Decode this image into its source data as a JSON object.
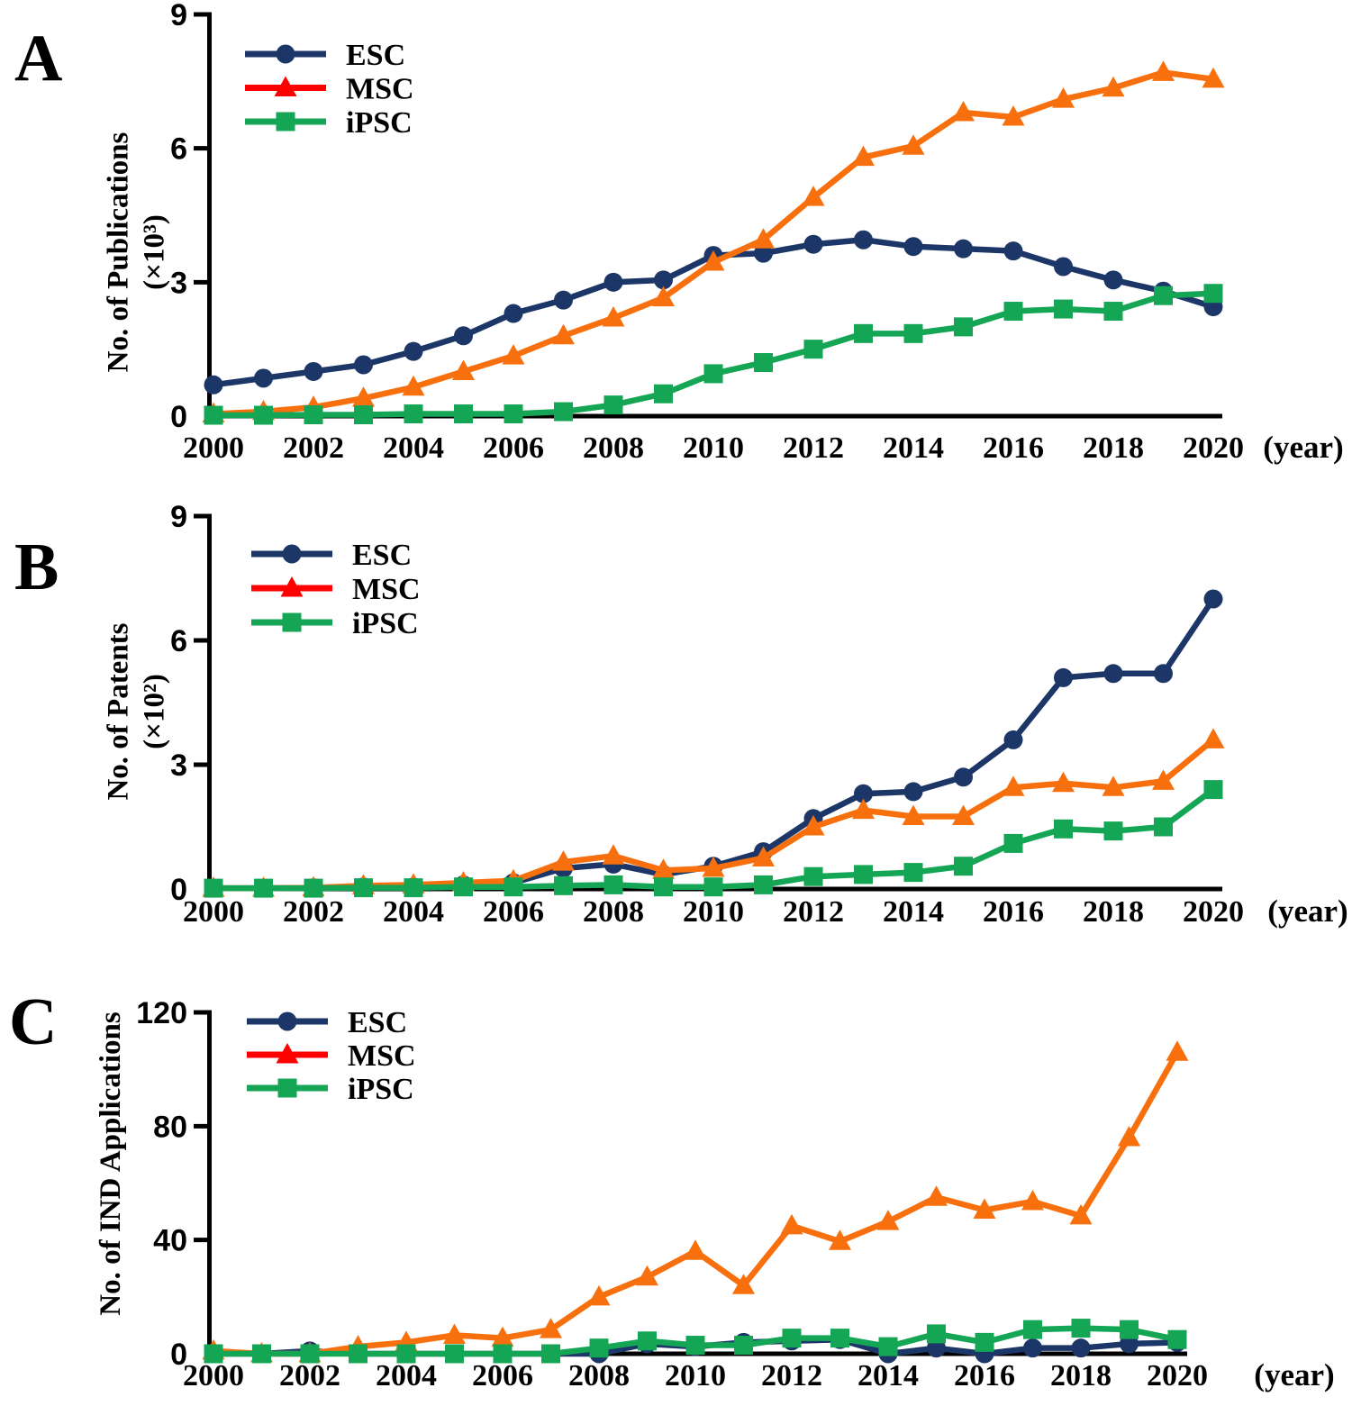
{
  "chart_data": {
    "xlabel": "(year)",
    "years": [
      2000,
      2001,
      2002,
      2003,
      2004,
      2005,
      2006,
      2007,
      2008,
      2009,
      2010,
      2011,
      2012,
      2013,
      2014,
      2015,
      2016,
      2017,
      2018,
      2019,
      2020
    ],
    "x_tick_labels": [
      "2000",
      "2002",
      "2004",
      "2006",
      "2008",
      "2010",
      "2012",
      "2014",
      "2016",
      "2018",
      "2020"
    ],
    "charts": [
      {
        "panel": "A",
        "type": "line",
        "ylabel": "No. of Publications",
        "ylabel_unit": "(×10³)",
        "ylim": [
          0,
          9
        ],
        "yticks": [
          0,
          3,
          6,
          9
        ],
        "legend_position": "top-left-inside",
        "grid": false,
        "series": [
          {
            "name": "ESC",
            "marker": "circle",
            "color": "#1C3667",
            "legend_color": "#1C3667",
            "values": [
              0.7,
              0.85,
              1.0,
              1.15,
              1.45,
              1.8,
              2.3,
              2.6,
              3.0,
              3.05,
              3.6,
              3.65,
              3.85,
              3.95,
              3.8,
              3.75,
              3.7,
              3.35,
              3.05,
              2.8,
              2.45
            ]
          },
          {
            "name": "MSC",
            "marker": "triangle",
            "color": "#F8700D",
            "legend_color": "#FF0000",
            "values": [
              0.05,
              0.1,
              0.2,
              0.4,
              0.65,
              1.0,
              1.35,
              1.8,
              2.2,
              2.65,
              3.45,
              3.95,
              4.9,
              5.8,
              6.05,
              6.8,
              6.7,
              7.1,
              7.35,
              7.7,
              7.55
            ]
          },
          {
            "name": "iPSC",
            "marker": "square",
            "color": "#14A655",
            "legend_color": "#14A655",
            "values": [
              0.02,
              0.02,
              0.03,
              0.03,
              0.05,
              0.05,
              0.05,
              0.1,
              0.25,
              0.5,
              0.95,
              1.2,
              1.5,
              1.85,
              1.85,
              2.0,
              2.35,
              2.4,
              2.35,
              2.7,
              2.75
            ]
          }
        ]
      },
      {
        "panel": "B",
        "type": "line",
        "ylabel": "No. of Patents",
        "ylabel_unit": "(×10²)",
        "ylim": [
          0,
          9
        ],
        "yticks": [
          0,
          3,
          6,
          9
        ],
        "legend_position": "top-left-inside",
        "grid": false,
        "series": [
          {
            "name": "ESC",
            "marker": "circle",
            "color": "#1C3667",
            "legend_color": "#1C3667",
            "values": [
              0.02,
              0.02,
              0.03,
              0.05,
              0.05,
              0.1,
              0.15,
              0.5,
              0.6,
              0.35,
              0.55,
              0.9,
              1.7,
              2.3,
              2.35,
              2.7,
              3.6,
              5.1,
              5.2,
              5.2,
              7.0
            ]
          },
          {
            "name": "MSC",
            "marker": "triangle",
            "color": "#F8700D",
            "legend_color": "#FF0000",
            "values": [
              0.02,
              0.02,
              0.03,
              0.08,
              0.1,
              0.15,
              0.2,
              0.65,
              0.8,
              0.45,
              0.5,
              0.75,
              1.5,
              1.9,
              1.75,
              1.75,
              2.45,
              2.55,
              2.45,
              2.6,
              3.6
            ]
          },
          {
            "name": "iPSC",
            "marker": "square",
            "color": "#14A655",
            "legend_color": "#14A655",
            "values": [
              0.02,
              0.02,
              0.02,
              0.03,
              0.03,
              0.05,
              0.05,
              0.08,
              0.1,
              0.05,
              0.05,
              0.1,
              0.3,
              0.35,
              0.4,
              0.55,
              1.1,
              1.45,
              1.4,
              1.5,
              2.4
            ]
          }
        ]
      },
      {
        "panel": "C",
        "type": "line",
        "ylabel": "No. of IND Applications",
        "ylabel_unit": "",
        "ylim": [
          0,
          120
        ],
        "yticks": [
          0,
          40,
          80,
          120
        ],
        "legend_position": "top-left-inside",
        "grid": false,
        "series": [
          {
            "name": "ESC",
            "marker": "circle",
            "color": "#1C3667",
            "legend_color": "#1C3667",
            "values": [
              0,
              0,
              1,
              0,
              0,
              0,
              0,
              0,
              0,
              3.5,
              2.5,
              4,
              4.5,
              5,
              0,
              2,
              0,
              2,
              2,
              3.5,
              4
            ]
          },
          {
            "name": "MSC",
            "marker": "triangle",
            "color": "#F8700D",
            "legend_color": "#FF0000",
            "values": [
              1,
              0,
              0,
              2.5,
              4,
              6.5,
              5.5,
              8.5,
              20,
              27,
              36,
              24,
              45,
              39.5,
              46.5,
              55,
              50.5,
              53.5,
              48.5,
              76,
              106
            ]
          },
          {
            "name": "iPSC",
            "marker": "square",
            "color": "#14A655",
            "legend_color": "#14A655",
            "values": [
              0,
              0,
              0,
              0,
              0,
              0,
              0,
              0,
              2,
              4.5,
              3,
              3,
              5.5,
              5.5,
              2.5,
              7,
              4,
              8.5,
              9,
              8.5,
              5
            ]
          }
        ]
      }
    ]
  }
}
